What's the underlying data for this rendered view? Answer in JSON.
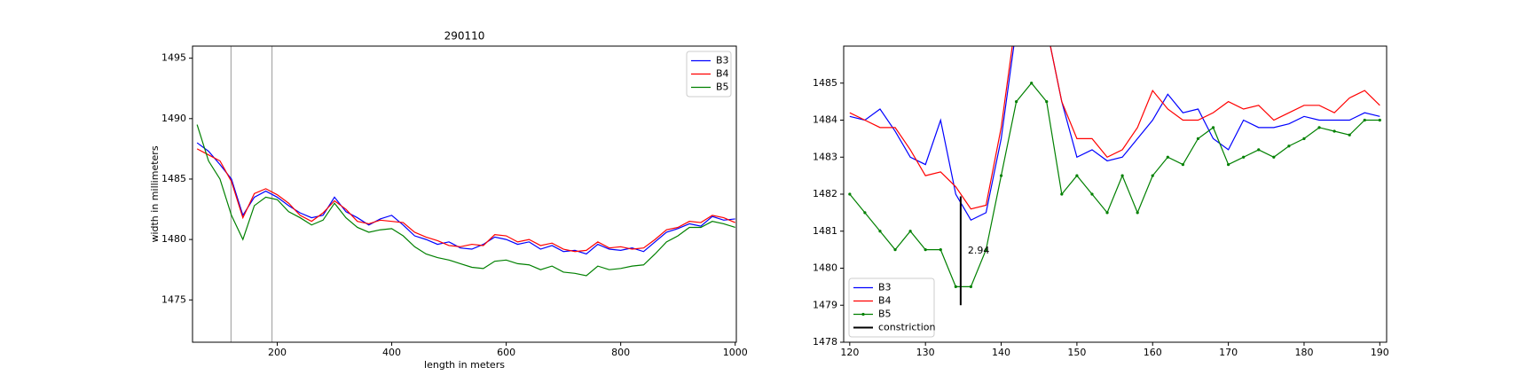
{
  "chart_data": [
    {
      "type": "line",
      "title": "290110",
      "xlabel": "length in meters",
      "ylabel": "width in millimeters",
      "x": [
        60,
        80,
        100,
        120,
        140,
        160,
        180,
        200,
        220,
        240,
        260,
        280,
        300,
        320,
        340,
        360,
        380,
        400,
        420,
        440,
        460,
        480,
        500,
        520,
        540,
        560,
        580,
        600,
        620,
        640,
        660,
        680,
        700,
        720,
        740,
        760,
        780,
        800,
        820,
        840,
        860,
        880,
        900,
        920,
        940,
        960,
        980,
        1000
      ],
      "series": [
        {
          "name": "B3",
          "color": "#0000ff",
          "values": [
            1488,
            1487.3,
            1486.2,
            1485,
            1482,
            1483.5,
            1484,
            1483.5,
            1482.8,
            1482.2,
            1481.8,
            1482,
            1483.5,
            1482.3,
            1481.8,
            1481.2,
            1481.7,
            1482,
            1481.2,
            1480.3,
            1480,
            1479.6,
            1479.8,
            1479.3,
            1479.2,
            1479.6,
            1480.2,
            1480,
            1479.6,
            1479.8,
            1479.2,
            1479.5,
            1479,
            1479.1,
            1478.8,
            1479.6,
            1479.2,
            1479.1,
            1479.3,
            1479,
            1479.8,
            1480.6,
            1480.9,
            1481.3,
            1481.1,
            1481.9,
            1481.6,
            1481.7
          ]
        },
        {
          "name": "B4",
          "color": "#ff0000",
          "values": [
            1487.5,
            1487,
            1486.5,
            1484.8,
            1481.8,
            1483.8,
            1484.2,
            1483.7,
            1483,
            1482,
            1481.5,
            1482.2,
            1483.2,
            1482.5,
            1481.5,
            1481.3,
            1481.6,
            1481.5,
            1481.4,
            1480.6,
            1480.2,
            1479.9,
            1479.5,
            1479.4,
            1479.6,
            1479.5,
            1480.4,
            1480.3,
            1479.8,
            1480,
            1479.5,
            1479.7,
            1479.2,
            1479,
            1479.1,
            1479.8,
            1479.3,
            1479.4,
            1479.2,
            1479.3,
            1480,
            1480.8,
            1481,
            1481.5,
            1481.4,
            1482,
            1481.8,
            1481.4
          ]
        },
        {
          "name": "B5",
          "color": "#008000",
          "values": [
            1489.5,
            1486.5,
            1485,
            1482,
            1480,
            1482.8,
            1483.5,
            1483.3,
            1482.3,
            1481.8,
            1481.2,
            1481.6,
            1483,
            1481.8,
            1481,
            1480.6,
            1480.8,
            1480.9,
            1480.3,
            1479.4,
            1478.8,
            1478.5,
            1478.3,
            1478,
            1477.7,
            1477.6,
            1478.2,
            1478.3,
            1478,
            1477.9,
            1477.5,
            1477.8,
            1477.3,
            1477.2,
            1477,
            1477.8,
            1477.5,
            1477.6,
            1477.8,
            1477.9,
            1478.8,
            1479.8,
            1480.3,
            1481,
            1481,
            1481.5,
            1481.3,
            1481
          ]
        }
      ],
      "xlim": [
        52,
        1002
      ],
      "ylim": [
        1471.5,
        1496
      ],
      "xticks": [
        200,
        400,
        600,
        800,
        1000
      ],
      "yticks": [
        1475,
        1480,
        1485,
        1490,
        1495
      ],
      "vlines": [
        119.2,
        190.9
      ],
      "legend": "upper right"
    },
    {
      "type": "line",
      "x": [
        120,
        122,
        124,
        126,
        128,
        130,
        132,
        134,
        136,
        138,
        140,
        142,
        144,
        146,
        148,
        150,
        152,
        154,
        156,
        158,
        160,
        162,
        164,
        166,
        168,
        170,
        172,
        174,
        176,
        178,
        180,
        182,
        184,
        186,
        188,
        190
      ],
      "series": [
        {
          "name": "B3",
          "color": "#0000ff",
          "values": [
            1484.1,
            1484.0,
            1484.3,
            1483.7,
            1483.0,
            1482.8,
            1484.0,
            1482.0,
            1481.3,
            1481.5,
            1483.5,
            1486.5,
            1488,
            1486.5,
            1484.5,
            1483,
            1483.2,
            1482.9,
            1483,
            1483.5,
            1484,
            1484.7,
            1484.2,
            1484.3,
            1483.5,
            1483.2,
            1484,
            1483.8,
            1483.8,
            1483.9,
            1484.1,
            1484,
            1484,
            1484,
            1484.2,
            1484.1
          ]
        },
        {
          "name": "B4",
          "color": "#ff0000",
          "values": [
            1484.2,
            1484.0,
            1483.8,
            1483.8,
            1483.2,
            1482.5,
            1482.6,
            1482.2,
            1481.6,
            1481.7,
            1483.8,
            1486.8,
            1488.5,
            1486.5,
            1484.5,
            1483.5,
            1483.5,
            1483,
            1483.2,
            1483.8,
            1484.8,
            1484.3,
            1484,
            1484,
            1484.2,
            1484.5,
            1484.3,
            1484.4,
            1484,
            1484.2,
            1484.4,
            1484.4,
            1484.2,
            1484.6,
            1484.8,
            1484.4
          ]
        },
        {
          "name": "B5",
          "color": "#008000",
          "marker": true,
          "values": [
            1482,
            1481.5,
            1481,
            1480.5,
            1481,
            1480.5,
            1480.5,
            1479.5,
            1479.5,
            1480.5,
            1482.5,
            1484.5,
            1485,
            1484.5,
            1482,
            1482.5,
            1482,
            1481.5,
            1482.5,
            1481.5,
            1482.5,
            1483,
            1482.8,
            1483.5,
            1483.8,
            1482.8,
            1483,
            1483.2,
            1483,
            1483.3,
            1483.5,
            1483.8,
            1483.7,
            1483.6,
            1484,
            1484
          ]
        }
      ],
      "constriction": {
        "name": "constriction",
        "color": "#000000",
        "x": 134.65,
        "y0": 1479,
        "y1": 1481.94,
        "label": "2.94"
      },
      "xlim": [
        119.2,
        190.9
      ],
      "ylim": [
        1478,
        1486
      ],
      "xticks": [
        120,
        130,
        140,
        150,
        160,
        170,
        180,
        190
      ],
      "yticks": [
        1478,
        1479,
        1480,
        1481,
        1482,
        1483,
        1484,
        1485
      ],
      "legend": "lower left"
    }
  ]
}
